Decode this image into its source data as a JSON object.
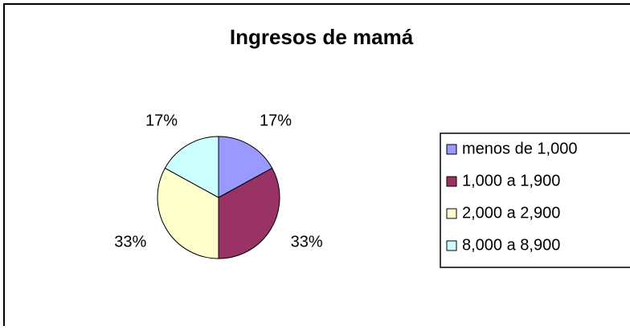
{
  "chart_data": {
    "type": "pie",
    "title": "Ingresos de mamá",
    "categories": [
      "menos de 1,000",
      "1,000 a 1,900",
      "2,000 a 2,900",
      "8,000 a 8,900"
    ],
    "values": [
      17,
      33,
      33,
      17
    ],
    "value_labels": [
      "17%",
      "33%",
      "33%",
      "17%"
    ],
    "colors": [
      "#9999ff",
      "#993366",
      "#ffffcc",
      "#ccffff"
    ],
    "legend": "right"
  }
}
